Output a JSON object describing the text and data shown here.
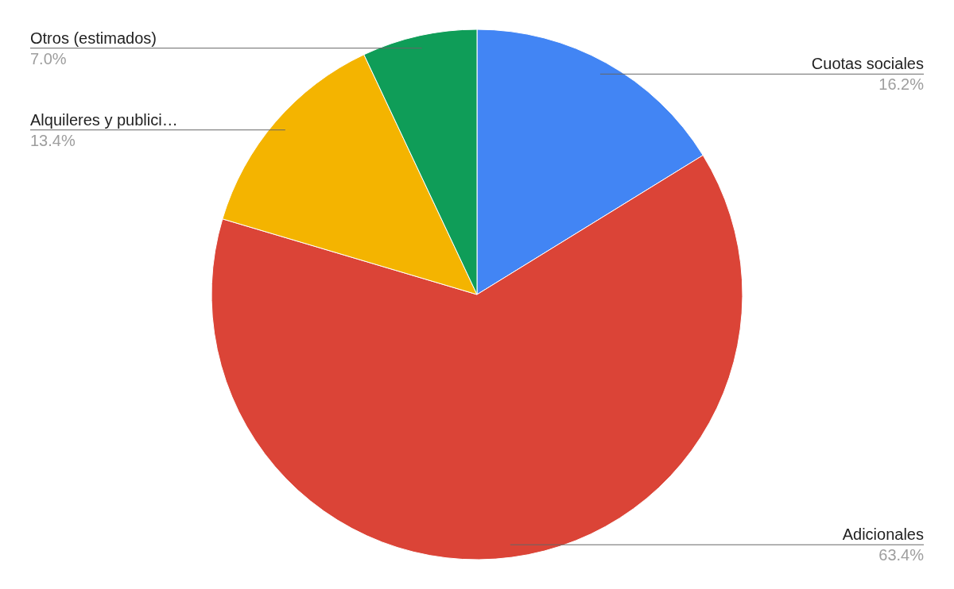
{
  "chart_data": {
    "type": "pie",
    "categories": [
      "Cuotas sociales",
      "Adicionales",
      "Alquileres y publici…",
      "Otros (estimados)"
    ],
    "values": [
      16.2,
      63.4,
      13.4,
      7.0
    ],
    "value_labels": [
      "16.2%",
      "63.4%",
      "13.4%",
      "7.0%"
    ],
    "colors": [
      "#4285f4",
      "#db4437",
      "#f4b400",
      "#0f9d58"
    ]
  }
}
